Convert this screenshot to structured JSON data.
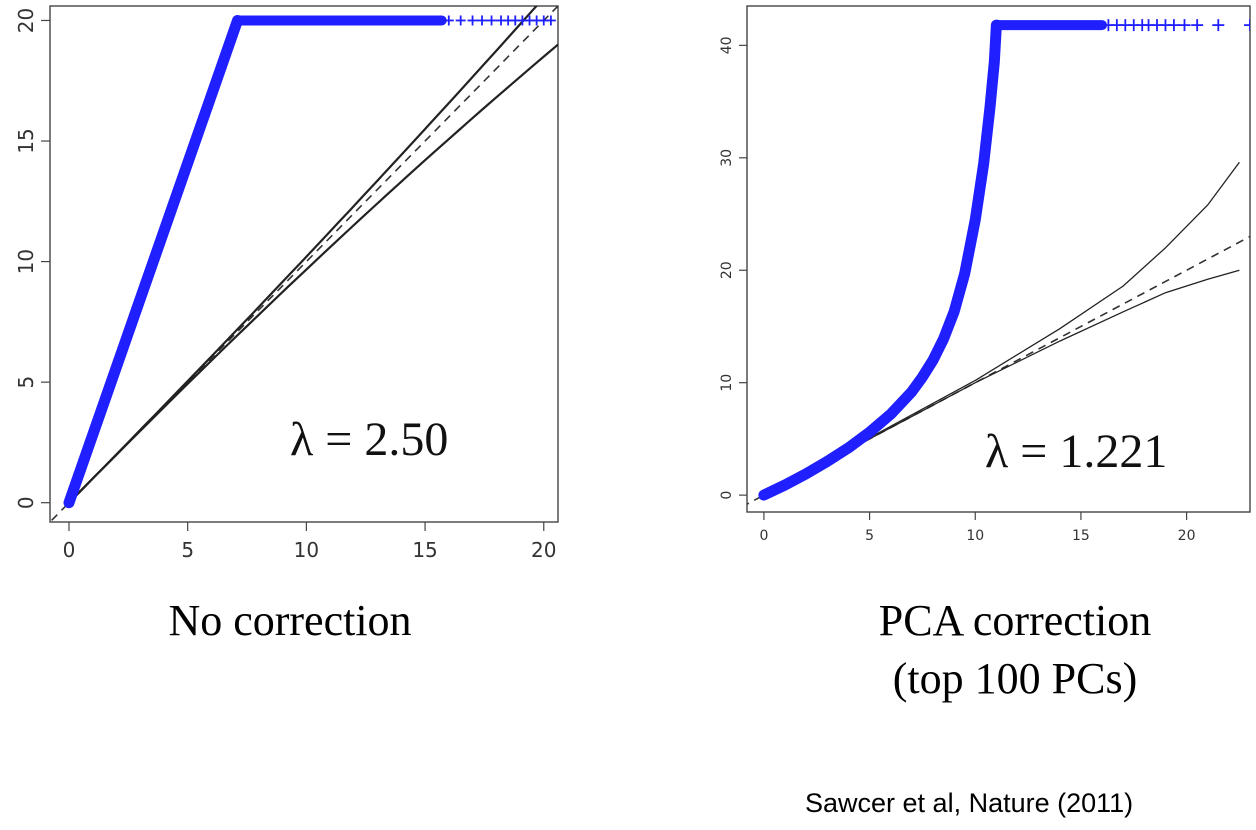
{
  "chart_data": [
    {
      "type": "scatter",
      "caption": "No correction",
      "annotation": "λ = 2.50",
      "xlim": [
        -0.8,
        20.6
      ],
      "ylim": [
        -0.8,
        20.6
      ],
      "xticks": [
        0,
        5,
        10,
        15,
        20
      ],
      "yticks": [
        0,
        5,
        10,
        15,
        20
      ],
      "point_color": "#1f1fff",
      "observed": {
        "rise": [
          [
            0,
            0
          ],
          [
            7.1,
            20
          ]
        ],
        "plateau_start": [
          7.1,
          20
        ],
        "sparse_tail_x": [
          16,
          16.5,
          17,
          17.4,
          17.8,
          18.2,
          18.5,
          18.8,
          19.1,
          19.4,
          19.7,
          20.0,
          20.3
        ],
        "plateau_value": 20
      },
      "expected_line": {
        "style": "dashed",
        "slope": 1
      },
      "confidence_band": {
        "upper_at_xmax": 21.6,
        "lower_at_xmax": 19.0,
        "xmax": 20.6
      }
    },
    {
      "type": "scatter",
      "caption": "PCA correction\n(top 100 PCs)",
      "annotation": "λ = 1.221",
      "xlim": [
        -0.8,
        23.0
      ],
      "ylim": [
        -1.5,
        43.5
      ],
      "xticks": [
        0,
        5,
        10,
        15,
        20
      ],
      "yticks": [
        0,
        10,
        20,
        30,
        40
      ],
      "point_color": "#1f1fff",
      "observed": {
        "curve": [
          [
            0,
            0
          ],
          [
            1,
            0.9
          ],
          [
            2,
            1.9
          ],
          [
            3,
            3.0
          ],
          [
            4,
            4.2
          ],
          [
            5,
            5.6
          ],
          [
            6,
            7.2
          ],
          [
            7,
            9.2
          ],
          [
            7.5,
            10.5
          ],
          [
            8,
            12.0
          ],
          [
            8.5,
            13.9
          ],
          [
            9,
            16.3
          ],
          [
            9.5,
            19.7
          ],
          [
            10,
            24.5
          ],
          [
            10.4,
            29.5
          ],
          [
            10.7,
            34.5
          ],
          [
            10.9,
            38.5
          ],
          [
            11.0,
            41.8
          ]
        ],
        "plateau_value": 41.8,
        "plateau_end_x": 16,
        "sparse_tail_x": [
          16.3,
          16.7,
          17.1,
          17.5,
          17.9,
          18.2,
          18.6,
          19.0,
          19.4,
          19.9,
          20.5,
          21.5,
          23.0
        ]
      },
      "expected_line": {
        "style": "dashed",
        "slope": 1
      },
      "confidence_band": {
        "upper": [
          [
            0,
            0
          ],
          [
            10,
            10.2
          ],
          [
            14,
            14.8
          ],
          [
            17,
            18.6
          ],
          [
            19,
            22.0
          ],
          [
            21,
            25.8
          ],
          [
            22.5,
            29.6
          ]
        ],
        "lower": [
          [
            0,
            0
          ],
          [
            10,
            10.0
          ],
          [
            14,
            13.7
          ],
          [
            17,
            16.3
          ],
          [
            19,
            18.0
          ],
          [
            21,
            19.2
          ],
          [
            22.5,
            20.0
          ]
        ]
      }
    }
  ],
  "citation": "Sawcer et al, Nature (2011)"
}
